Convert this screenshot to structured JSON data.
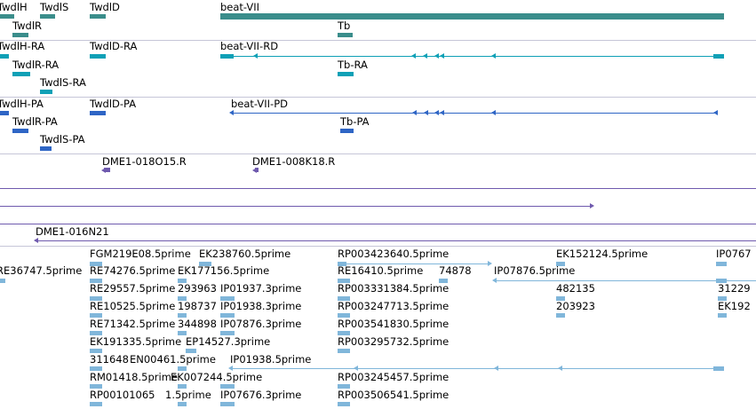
{
  "colors": {
    "gene": "#3a8d8b",
    "rna": "#0fa0b6",
    "protein": "#2e65c5",
    "bac": "#6f5aae",
    "est": "#80b6da",
    "separator": "#c6c6d8"
  },
  "gene_track": {
    "labels": [
      "TwdlH",
      "TwdlS",
      "TwdlD",
      "beat-VII",
      "TwdlR",
      "Tb"
    ]
  },
  "rna_track": {
    "labels": [
      "TwdlH-RA",
      "TwdlD-RA",
      "beat-VII-RD",
      "TwdlR-RA",
      "Tb-RA",
      "TwdlS-RA"
    ]
  },
  "protein_track": {
    "labels": [
      "TwdlH-PA",
      "TwdlD-PA",
      "beat-VII-PD",
      "TwdlR-PA",
      "Tb-PA",
      "TwdlS-PA"
    ]
  },
  "bac_track": {
    "labels": [
      "DME1-018O15.R",
      "DME1-008K18.R",
      "DME1-016N21"
    ]
  },
  "est_track": {
    "labels": [
      "FGM219E08.5prime",
      "EK238760.5prime",
      "RP003423640.5prime",
      "EK152124.5prime",
      "IP0767",
      "RE36747.5prime",
      "RE74276.5prime",
      "EK177156.5prime",
      "RE16410.5prime",
      "74878",
      "IP07876.5prime",
      "RE29557.5prime",
      "293963",
      "IP01937.3prime",
      "RP003331384.5prime",
      "482135",
      "31229",
      "RE10525.5prime",
      "198737",
      "IP01938.3prime",
      "RP003247713.5prime",
      "203923",
      "EK192",
      "RE71342.5prime",
      "344898",
      "IP07876.3prime",
      "RP003541830.5prime",
      "EK191335.5prime",
      "EP14527.3prime",
      "RP003295732.5prime",
      "311648",
      "EN00461.5prime",
      "IP01938.5prime",
      "RM01418.5prime",
      "EK007244.5prime",
      "RP003245457.5prime",
      "RP00101065",
      "1.5prime",
      "IP07676.3prime",
      "RP003506541.5prime"
    ]
  }
}
